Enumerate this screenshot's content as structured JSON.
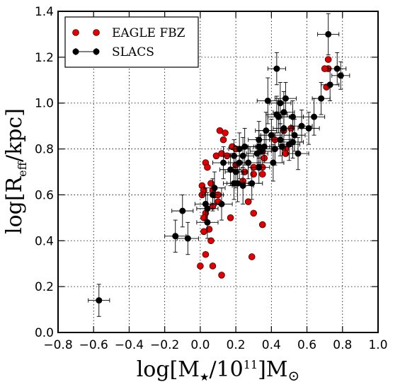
{
  "chart_data": {
    "type": "scatter",
    "xlabel": "log[M★/10¹¹]M⊙",
    "ylabel": "log[R_eff/kpc]",
    "xlabel_parts": {
      "pre": "log[M",
      "sub": "★",
      "mid": "/10",
      "sup": "11",
      "post": "]M",
      "sun": "⊙"
    },
    "ylabel_parts": {
      "pre": "log[R",
      "sub": "eff",
      "post": "/kpc]"
    },
    "xlim": [
      -0.8,
      1.0
    ],
    "ylim": [
      0.0,
      1.4
    ],
    "xticks": [
      -0.8,
      -0.6,
      -0.4,
      -0.2,
      0.0,
      0.2,
      0.4,
      0.6,
      0.8,
      1.0
    ],
    "xtick_labels": [
      "−0.8",
      "−0.6",
      "−0.4",
      "−0.2",
      "0.0",
      "0.2",
      "0.4",
      "0.6",
      "0.8",
      "1.0"
    ],
    "yticks": [
      0.0,
      0.2,
      0.4,
      0.6,
      0.8,
      1.0,
      1.2,
      1.4
    ],
    "ytick_labels": [
      "0.0",
      "0.2",
      "0.4",
      "0.6",
      "0.8",
      "1.0",
      "1.2",
      "1.4"
    ],
    "grid": true,
    "legend_position": "top-left",
    "series": [
      {
        "name": "EAGLE FBZ",
        "color": "#e00000",
        "marker": "circle",
        "points": [
          [
            0.72,
            1.19
          ],
          [
            0.72,
            1.15
          ],
          [
            0.7,
            1.15
          ],
          [
            0.71,
            1.07
          ],
          [
            0.51,
            0.89
          ],
          [
            0.47,
            0.88
          ],
          [
            0.42,
            0.84
          ],
          [
            0.48,
            0.8
          ],
          [
            0.48,
            0.78
          ],
          [
            0.35,
            0.79
          ],
          [
            0.36,
            0.76
          ],
          [
            0.33,
            0.72
          ],
          [
            0.35,
            0.72
          ],
          [
            0.3,
            0.72
          ],
          [
            0.3,
            0.69
          ],
          [
            0.35,
            0.69
          ],
          [
            0.25,
            0.7
          ],
          [
            0.24,
            0.66
          ],
          [
            0.27,
            0.57
          ],
          [
            0.3,
            0.52
          ],
          [
            0.35,
            0.47
          ],
          [
            0.29,
            0.33
          ],
          [
            0.11,
            0.88
          ],
          [
            0.14,
            0.87
          ],
          [
            0.13,
            0.84
          ],
          [
            0.09,
            0.77
          ],
          [
            0.12,
            0.78
          ],
          [
            0.15,
            0.77
          ],
          [
            0.18,
            0.81
          ],
          [
            0.2,
            0.8
          ],
          [
            0.2,
            0.73
          ],
          [
            0.03,
            0.74
          ],
          [
            0.04,
            0.72
          ],
          [
            0.06,
            0.65
          ],
          [
            0.07,
            0.62
          ],
          [
            0.08,
            0.6
          ],
          [
            0.1,
            0.6
          ],
          [
            0.01,
            0.64
          ],
          [
            0.02,
            0.62
          ],
          [
            0.01,
            0.6
          ],
          [
            0.1,
            0.57
          ],
          [
            0.07,
            0.55
          ],
          [
            0.03,
            0.52
          ],
          [
            0.02,
            0.5
          ],
          [
            0.02,
            0.44
          ],
          [
            0.05,
            0.45
          ],
          [
            0.06,
            0.4
          ],
          [
            0.17,
            0.5
          ],
          [
            0.03,
            0.34
          ],
          [
            0.07,
            0.29
          ],
          [
            0.0,
            0.29
          ],
          [
            0.12,
            0.25
          ]
        ]
      },
      {
        "name": "SLACS",
        "color": "#000000",
        "marker": "circle-errorbar",
        "points": [
          [
            0.72,
            1.3,
            0.06,
            0.09
          ],
          [
            0.43,
            1.15,
            0.05,
            0.07
          ],
          [
            0.77,
            1.15,
            0.05,
            0.07
          ],
          [
            0.79,
            1.12,
            0.05,
            0.06
          ],
          [
            0.73,
            1.08,
            0.05,
            0.07
          ],
          [
            0.68,
            1.02,
            0.05,
            0.07
          ],
          [
            0.48,
            1.02,
            0.06,
            0.07
          ],
          [
            0.45,
            1.0,
            0.06,
            0.09
          ],
          [
            0.38,
            1.01,
            0.06,
            0.1
          ],
          [
            0.47,
            0.96,
            0.06,
            0.09
          ],
          [
            0.43,
            0.95,
            0.06,
            0.08
          ],
          [
            0.52,
            0.94,
            0.06,
            0.07
          ],
          [
            0.64,
            0.94,
            0.06,
            0.08
          ],
          [
            0.57,
            0.9,
            0.06,
            0.07
          ],
          [
            0.61,
            0.89,
            0.06,
            0.07
          ],
          [
            0.47,
            0.89,
            0.06,
            0.07
          ],
          [
            0.37,
            0.88,
            0.06,
            0.08
          ],
          [
            0.4,
            0.86,
            0.06,
            0.07
          ],
          [
            0.53,
            0.86,
            0.06,
            0.07
          ],
          [
            0.33,
            0.84,
            0.06,
            0.08
          ],
          [
            0.45,
            0.84,
            0.06,
            0.07
          ],
          [
            0.52,
            0.83,
            0.06,
            0.07
          ],
          [
            0.5,
            0.82,
            0.06,
            0.07
          ],
          [
            0.42,
            0.8,
            0.06,
            0.07
          ],
          [
            0.55,
            0.78,
            0.06,
            0.07
          ],
          [
            0.25,
            0.81,
            0.06,
            0.08
          ],
          [
            0.22,
            0.8,
            0.06,
            0.07
          ],
          [
            0.36,
            0.81,
            0.06,
            0.07
          ],
          [
            0.34,
            0.79,
            0.06,
            0.07
          ],
          [
            0.32,
            0.78,
            0.06,
            0.07
          ],
          [
            0.24,
            0.77,
            0.06,
            0.08
          ],
          [
            0.19,
            0.77,
            0.06,
            0.07
          ],
          [
            0.27,
            0.74,
            0.06,
            0.07
          ],
          [
            0.22,
            0.74,
            0.06,
            0.07
          ],
          [
            0.41,
            0.74,
            0.06,
            0.08
          ],
          [
            0.33,
            0.72,
            0.06,
            0.07
          ],
          [
            0.13,
            0.74,
            0.06,
            0.07
          ],
          [
            0.17,
            0.71,
            0.06,
            0.07
          ],
          [
            0.2,
            0.7,
            0.06,
            0.07
          ],
          [
            0.29,
            0.65,
            0.06,
            0.07
          ],
          [
            0.21,
            0.65,
            0.06,
            0.08
          ],
          [
            0.19,
            0.65,
            0.06,
            0.07
          ],
          [
            0.24,
            0.64,
            0.06,
            0.08
          ],
          [
            0.08,
            0.63,
            0.06,
            0.07
          ],
          [
            0.07,
            0.6,
            0.06,
            0.07
          ],
          [
            0.12,
            0.56,
            0.06,
            0.07
          ],
          [
            0.03,
            0.56,
            0.06,
            0.07
          ],
          [
            0.04,
            0.54,
            0.06,
            0.07
          ],
          [
            -0.1,
            0.53,
            0.06,
            0.07
          ],
          [
            0.04,
            0.48,
            0.06,
            0.07
          ],
          [
            -0.14,
            0.42,
            0.06,
            0.07
          ],
          [
            -0.07,
            0.41,
            0.06,
            0.07
          ],
          [
            -0.57,
            0.14,
            0.06,
            0.07
          ],
          [
            0.33,
            0.81,
            0.06,
            0.07
          ],
          [
            0.44,
            0.94,
            0.06,
            0.07
          ],
          [
            0.46,
            0.81,
            0.06,
            0.07
          ]
        ]
      }
    ]
  }
}
